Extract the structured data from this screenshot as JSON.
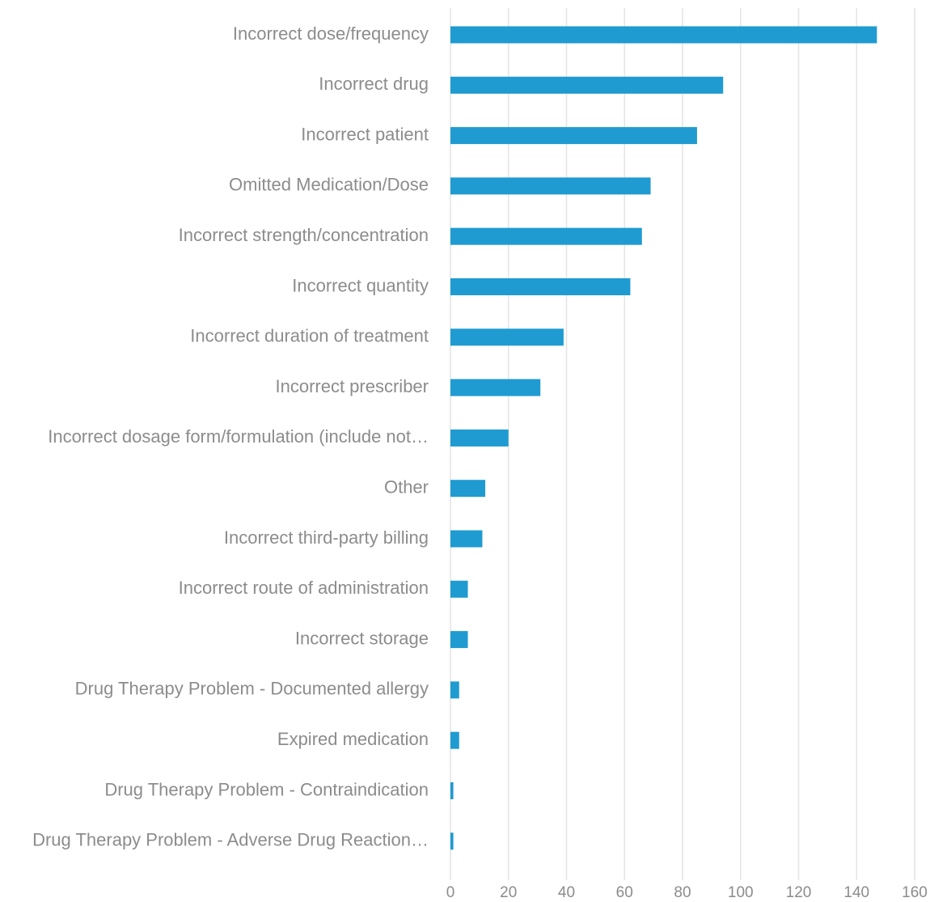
{
  "chart_data": {
    "type": "bar",
    "orientation": "horizontal",
    "title": "",
    "xlabel": "",
    "ylabel": "",
    "categories": [
      "Incorrect dose/frequency",
      "Incorrect drug",
      "Incorrect patient",
      "Omitted Medication/Dose",
      "Incorrect strength/concentration",
      "Incorrect quantity",
      "Incorrect duration of treatment",
      "Incorrect prescriber",
      "Incorrect dosage form/formulation (include not…",
      "Other",
      "Incorrect third-party billing",
      "Incorrect route of administration",
      "Incorrect storage",
      "Drug Therapy Problem - Documented allergy",
      "Expired medication",
      "Drug Therapy Problem - Contraindication",
      "Drug Therapy Problem - Adverse Drug Reaction…"
    ],
    "values": [
      147,
      94,
      85,
      69,
      66,
      62,
      39,
      31,
      20,
      12,
      11,
      6,
      6,
      3,
      3,
      1,
      1
    ],
    "xlim": [
      0,
      160
    ],
    "xticks": [
      "0",
      "20",
      "40",
      "60",
      "80",
      "100",
      "120",
      "140",
      "160"
    ],
    "grid": "vertical",
    "legend": "none",
    "bar_color": "#1f9bd1",
    "gridline_color": "#e4e4e4",
    "label_color": "#8c8c8c"
  }
}
